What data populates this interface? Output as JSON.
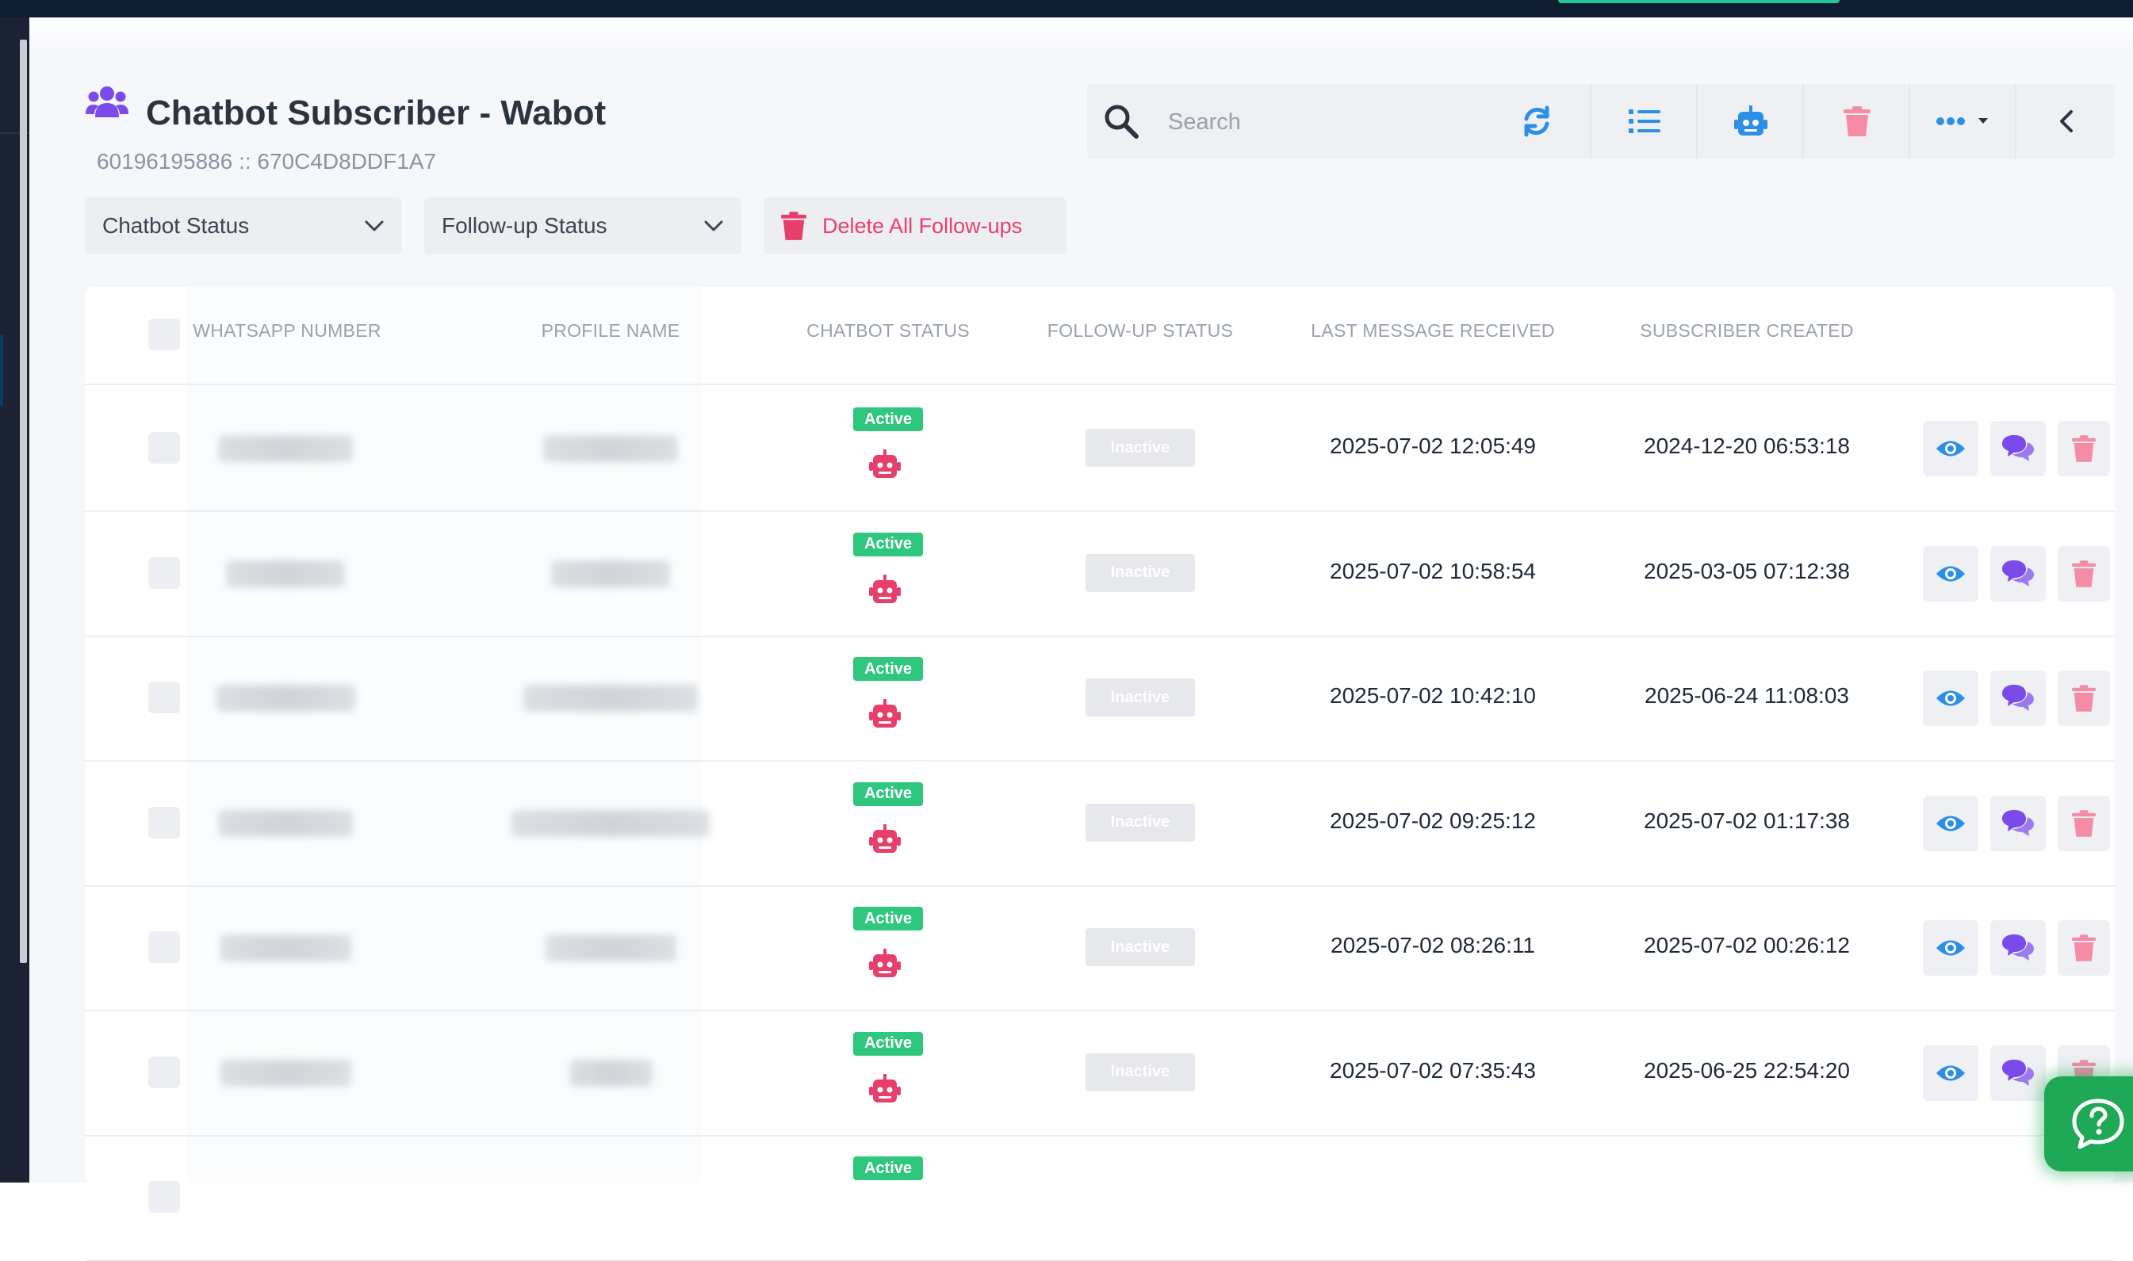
{
  "page": {
    "title": "Chatbot Subscriber - Wabot",
    "subtitle": "60196195886 :: 670C4D8DDF1A7"
  },
  "toolbar": {
    "search_placeholder": "Search",
    "icons": [
      "search-icon",
      "refresh-icon",
      "list-icon",
      "robot-icon",
      "trash-icon",
      "more-dots-icon",
      "chevron-left-icon"
    ]
  },
  "filters": {
    "chatbot_status": "Chatbot Status",
    "followup_status": "Follow-up Status",
    "delete_all": "Delete All Follow-ups"
  },
  "table": {
    "headers": [
      "WHATSAPP NUMBER",
      "PROFILE NAME",
      "CHATBOT STATUS",
      "FOLLOW-UP STATUS",
      "LAST MESSAGE RECEIVED",
      "SUBSCRIBER CREATED"
    ],
    "rows": [
      {
        "chatbot_status": "Active",
        "followup_status": "Inactive",
        "last_message": "2025-07-02 12:05:49",
        "created": "2024-12-20 06:53:18"
      },
      {
        "chatbot_status": "Active",
        "followup_status": "Inactive",
        "last_message": "2025-07-02 10:58:54",
        "created": "2025-03-05 07:12:38"
      },
      {
        "chatbot_status": "Active",
        "followup_status": "Inactive",
        "last_message": "2025-07-02 10:42:10",
        "created": "2025-06-24 11:08:03"
      },
      {
        "chatbot_status": "Active",
        "followup_status": "Inactive",
        "last_message": "2025-07-02 09:25:12",
        "created": "2025-07-02 01:17:38"
      },
      {
        "chatbot_status": "Active",
        "followup_status": "Inactive",
        "last_message": "2025-07-02 08:26:11",
        "created": "2025-07-02 00:26:12"
      },
      {
        "chatbot_status": "Active",
        "followup_status": "Inactive",
        "last_message": "2025-07-02 07:35:43",
        "created": "2025-06-25 22:54:20"
      },
      {
        "chatbot_status": "Active"
      }
    ]
  },
  "colors": {
    "accent_purple": "#7b4bea",
    "active_green": "#2fc77d",
    "danger_pink": "#e83e6c",
    "eye_blue": "#2b8fe6",
    "help_green": "#1fa855"
  }
}
